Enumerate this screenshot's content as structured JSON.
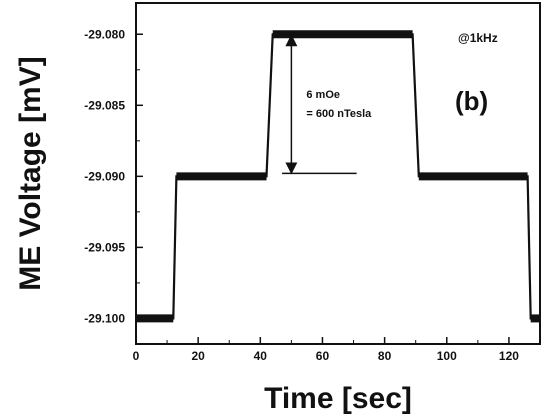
{
  "chart_data": {
    "type": "line",
    "xlabel": "Time [sec]",
    "ylabel": "ME Voltage [mV]",
    "xlim": [
      0,
      130
    ],
    "ylim": [
      -29.1018,
      -29.0778
    ],
    "x_ticks": [
      0,
      20,
      40,
      60,
      80,
      100,
      120
    ],
    "x_tick_labels": [
      "0",
      "20",
      "40",
      "60",
      "80",
      "100",
      "120"
    ],
    "y_ticks": [
      -29.08,
      -29.085,
      -29.09,
      -29.095,
      -29.1
    ],
    "y_tick_labels": [
      "-29.080",
      "-29.085",
      "-29.090",
      "-29.095",
      "-29.100"
    ],
    "series": [
      {
        "x": [
          0,
          12,
          13,
          42,
          44,
          89,
          91,
          126,
          127,
          130
        ],
        "y": [
          -29.1,
          -29.1,
          -29.09,
          -29.09,
          -29.08,
          -29.08,
          -29.09,
          -29.09,
          -29.1,
          -29.1
        ]
      }
    ],
    "annotations": {
      "panel_label": "(b)",
      "frequency": "@1kHz",
      "delta_line1": "6 mOe",
      "delta_line2": "= 600 nTesla",
      "arrow_x": 50,
      "arrow_y_top": -29.08,
      "arrow_y_bottom": -29.09,
      "ref_line_x": [
        47,
        71
      ]
    },
    "grid": false
  }
}
